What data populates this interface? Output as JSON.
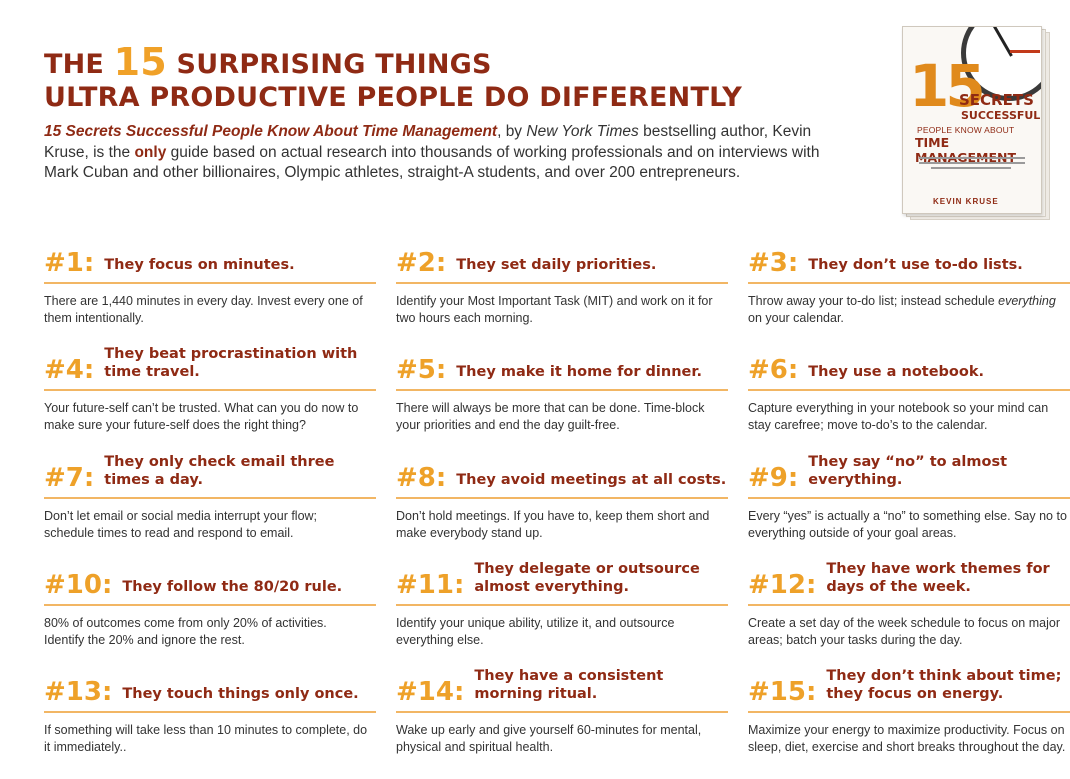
{
  "header": {
    "title_pre": "THE ",
    "title_num": "15",
    "title_line1_rest": " SURPRISING THINGS",
    "title_line2": "ULTRA PRODUCTIVE PEOPLE DO DIFFERENTLY",
    "intro": {
      "book_title": "15 Secrets Successful People Know About Time Management",
      "part1": ", by ",
      "nyt": "New York Times",
      "part2": " bestselling author, Kevin Kruse, is the ",
      "only": "only",
      "part3": " guide based on actual research into thousands of working professionals and on interviews with Mark Cuban and other billionaires, Olympic athletes, straight-A students, and over 200 entrepreneurs."
    }
  },
  "book_cover": {
    "number": "15",
    "secrets": "SECRETS",
    "successful": "SUCCESSFUL",
    "people_know": "PEOPLE KNOW ABOUT",
    "time_management": "TIME MANAGEMENT",
    "author": "KEVIN KRUSE"
  },
  "tips": [
    {
      "num": "#1:",
      "heading": "They focus on minutes.",
      "body": "There are 1,440 minutes in every day. Invest every one of them intentionally."
    },
    {
      "num": "#2:",
      "heading": "They set daily priorities.",
      "body": "Identify your Most Important Task (MIT) and work on it for two hours each morning."
    },
    {
      "num": "#3:",
      "heading": "They don’t use to-do lists.",
      "body_pre": "Throw away your to-do list; instead schedule ",
      "body_em": "everything",
      "body_post": " on your calendar."
    },
    {
      "num": "#4:",
      "heading": "They beat procrastination with time travel.",
      "body": "Your future-self can’t be trusted. What can you do now to make sure your future-self does the right thing?"
    },
    {
      "num": "#5:",
      "heading": "They make it home for dinner.",
      "body": "There will always be more that can be done. Time-block your priorities and end the day guilt-free."
    },
    {
      "num": "#6:",
      "heading": "They use a notebook.",
      "body": "Capture everything in your notebook so your mind can stay carefree; move to-do’s to the calendar."
    },
    {
      "num": "#7:",
      "heading": "They only check email three times a day.",
      "body": "Don’t let email or social media interrupt your flow; schedule times to read and respond to email."
    },
    {
      "num": "#8:",
      "heading": "They avoid meetings at all costs.",
      "body": "Don’t hold meetings. If you have to, keep them short and make everybody stand up."
    },
    {
      "num": "#9:",
      "heading": "They say “no”  to almost everything.",
      "body": "Every “yes” is actually a “no” to something else. Say no to everything outside of your goal areas."
    },
    {
      "num": "#10:",
      "heading": "They follow the 80/20 rule.",
      "body": "80% of outcomes come from only 20% of activities. Identify the 20% and ignore the rest."
    },
    {
      "num": "#11:",
      "heading": "They delegate or outsource almost everything.",
      "body": "Identify your unique ability, utilize it, and outsource everything else."
    },
    {
      "num": "#12:",
      "heading": "They have work themes for days of the week.",
      "body": "Create a set day of the week schedule to focus on major areas; batch your tasks during the day."
    },
    {
      "num": "#13:",
      "heading": "They touch things only once.",
      "body": "If something will take less than 10 minutes to complete, do it immediately.."
    },
    {
      "num": "#14:",
      "heading": "They have a consistent morning ritual.",
      "body": "Wake up early and give yourself 60-minutes for mental, physical and spiritual health."
    },
    {
      "num": "#15:",
      "heading": "They don’t think about time; they focus on energy.",
      "body": "Maximize your energy to maximize productivity. Focus on sleep, diet, exercise and short breaks throughout the day."
    }
  ]
}
